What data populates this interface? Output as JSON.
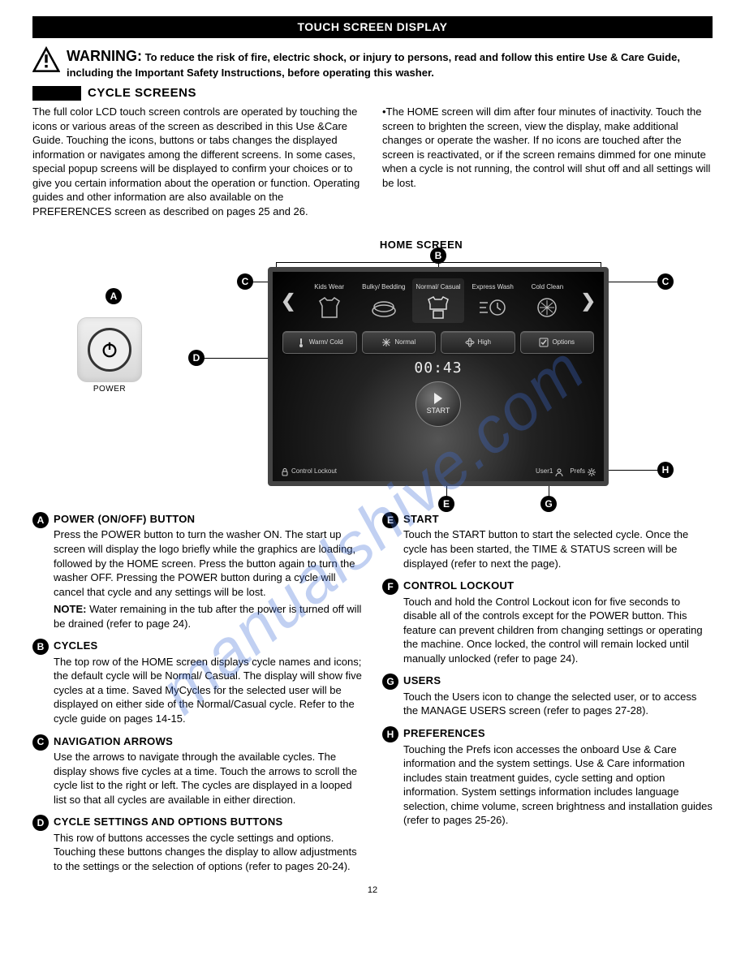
{
  "title_bar": "TOUCH SCREEN DISPLAY",
  "warning_label": "WARNING:",
  "warning_text": "To reduce the risk of fire, electric shock, or injury to persons, read and follow this entire Use & Care Guide, including the Important Safety Instructions, before operating this washer.",
  "section_heading": "CYCLE SCREENS",
  "intro_left": "The full color LCD touch screen controls are operated by touching the icons or various areas of the screen as described in this Use &Care Guide. Touching the icons, buttons or tabs changes the displayed information or navigates among the different screens. In some cases, special popup screens will be displayed to confirm your choices or to give you certain information about the operation or function. Operating guides and other information are also available on the PREFERENCES screen as described on pages 25 and 26.",
  "intro_right": "•The HOME screen will dim after four minutes of inactivity. Touch the screen to brighten the screen, view the display, make additional changes or operate the washer. If no icons are touched after the screen is reactivated, or if the screen remains dimmed for one minute when a cycle is not running, the control will shut off and all settings will be lost.",
  "home_screen_label": "HOME SCREEN",
  "power_label": "POWER",
  "callouts": {
    "A": "A",
    "B": "B",
    "C": "C",
    "D": "D",
    "E": "E",
    "F": "F",
    "G": "G",
    "H": "H"
  },
  "screen": {
    "cycles": [
      {
        "label": "Kids Wear"
      },
      {
        "label": "Bulky/ Bedding"
      },
      {
        "label": "Normal/ Casual"
      },
      {
        "label": "Express Wash"
      },
      {
        "label": "Cold Clean"
      }
    ],
    "options": [
      {
        "label": "Warm/ Cold",
        "icon": "thermometer"
      },
      {
        "label": "Normal",
        "icon": "snowflake"
      },
      {
        "label": "High",
        "icon": "spin"
      },
      {
        "label": "Options",
        "icon": "check"
      }
    ],
    "timer": "00:43",
    "start": "START",
    "control_lockout": "Control Lockout",
    "user": "User1",
    "prefs": "Prefs"
  },
  "descriptions_left": [
    {
      "letter": "A",
      "title": "POWER (ON/OFF) BUTTON",
      "body": "Press the POWER button to turn the washer ON. The start up screen will display the logo briefly while the graphics are loading, followed by the HOME screen. Press the button again to turn the washer OFF. Pressing the POWER button during a cycle will cancel that cycle and any settings will be lost.",
      "note": "NOTE: Water remaining in the tub after the power is turned off will be drained (refer to page 24)."
    },
    {
      "letter": "B",
      "title": "CYCLES",
      "body": "The top row of the HOME screen displays cycle names and icons; the default cycle will be Normal/ Casual. The display will show five cycles at a time. Saved MyCycles for the selected user will be displayed on either side of the Normal/Casual cycle. Refer to the cycle guide on pages 14-15."
    },
    {
      "letter": "C",
      "title": "NAVIGATION ARROWS",
      "body": "Use the arrows to navigate through the available cycles. The display shows five cycles at a time. Touch the arrows to scroll the cycle list to the right or left. The cycles are displayed in a looped list so that all cycles are available in either direction."
    },
    {
      "letter": "D",
      "title": "CYCLE SETTINGS AND OPTIONS BUTTONS",
      "body": "This row of buttons accesses the cycle settings and options. Touching these buttons changes the display to allow adjustments to the settings or the selection of options (refer to pages 20-24)."
    }
  ],
  "descriptions_right": [
    {
      "letter": "E",
      "title": "START",
      "body": "Touch the START button to start the selected cycle. Once the cycle has been started, the TIME & STATUS screen will be displayed (refer to next the page)."
    },
    {
      "letter": "F",
      "title": "CONTROL LOCKOUT",
      "body": "Touch and hold the Control Lockout icon for five seconds to disable all of the controls except for the POWER button. This feature can prevent children from changing settings or operating the machine. Once locked, the control will remain locked until manually unlocked (refer to page 24)."
    },
    {
      "letter": "G",
      "title": "USERS",
      "body": "Touch the Users icon to change the selected user, or to access the MANAGE USERS screen (refer to pages 27-28)."
    },
    {
      "letter": "H",
      "title": "PREFERENCES",
      "body": "Touching the Prefs icon accesses the onboard Use & Care information and the system settings. Use & Care information includes stain treatment guides, cycle setting and option information. System settings information includes language selection, chime volume, screen brightness and installation guides (refer to pages 25-26)."
    }
  ],
  "page_number": "12",
  "watermark": "manualshive.com"
}
